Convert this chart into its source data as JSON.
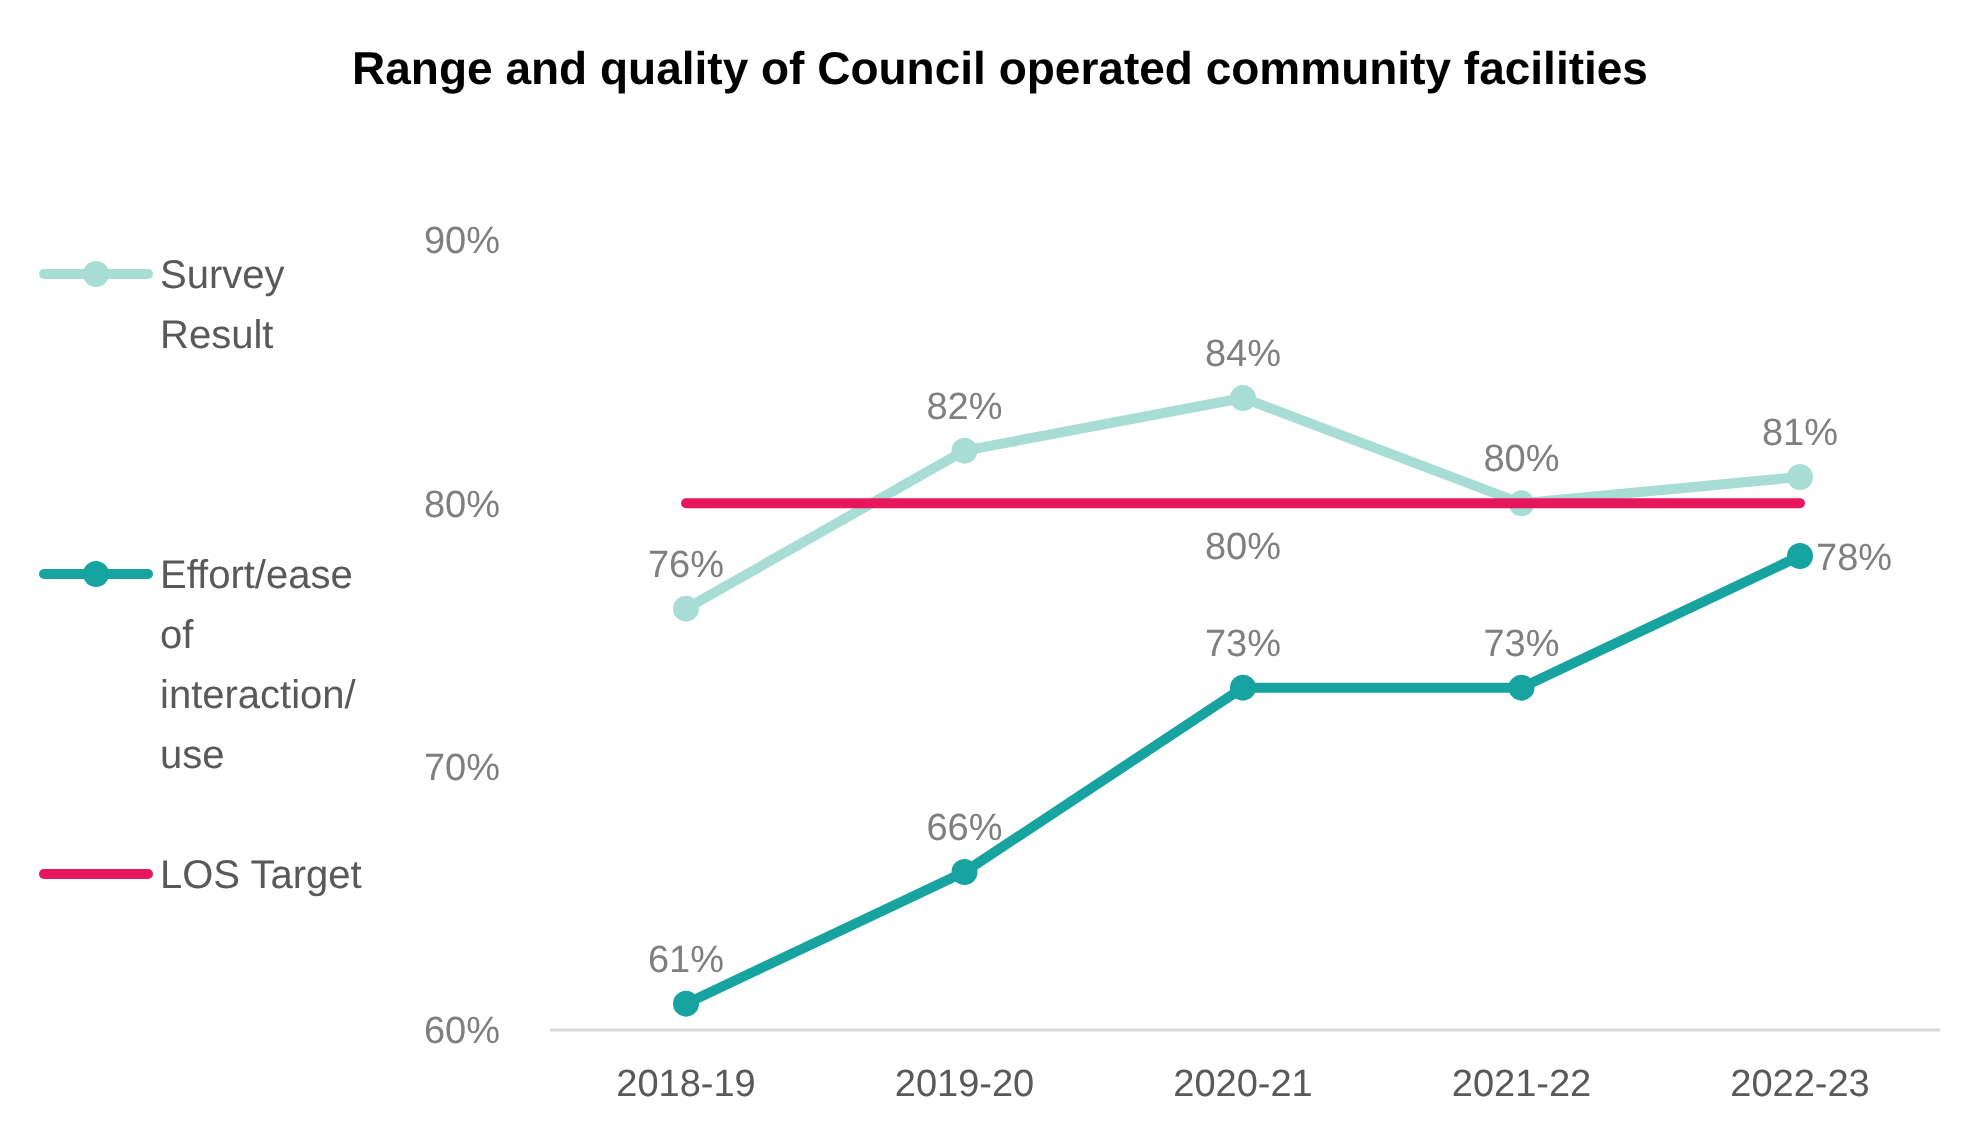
{
  "chart_data": {
    "type": "line",
    "title": "Range and quality of Council operated community facilities",
    "categories": [
      "2018-19",
      "2019-20",
      "2020-21",
      "2021-22",
      "2022-23"
    ],
    "series": [
      {
        "name": "Survey Result",
        "color": "#a8ddd6",
        "values": [
          76,
          82,
          84,
          80,
          81
        ],
        "value_labels": [
          "76%",
          "82%",
          "84%",
          "80%",
          "81%"
        ]
      },
      {
        "name": "Effort/ease of interaction/ use",
        "color": "#17a3a0",
        "values": [
          61,
          66,
          73,
          73,
          78
        ],
        "value_labels": [
          "61%",
          "66%",
          "73%",
          "73%",
          "78%"
        ]
      },
      {
        "name": "LOS Target",
        "color": "#e8175d",
        "values": [
          80,
          80,
          80,
          80,
          80
        ],
        "marker": "none",
        "value_labels": [
          null,
          null,
          "80%",
          null,
          null
        ]
      }
    ],
    "ylim": [
      60,
      90
    ],
    "yticks": [
      {
        "value": 60,
        "label": "60%"
      },
      {
        "value": 70,
        "label": "70%"
      },
      {
        "value": 80,
        "label": "80%"
      },
      {
        "value": 90,
        "label": "90%"
      }
    ],
    "grid": false,
    "legend": "left",
    "marker": "circle",
    "line_style": "solid"
  }
}
